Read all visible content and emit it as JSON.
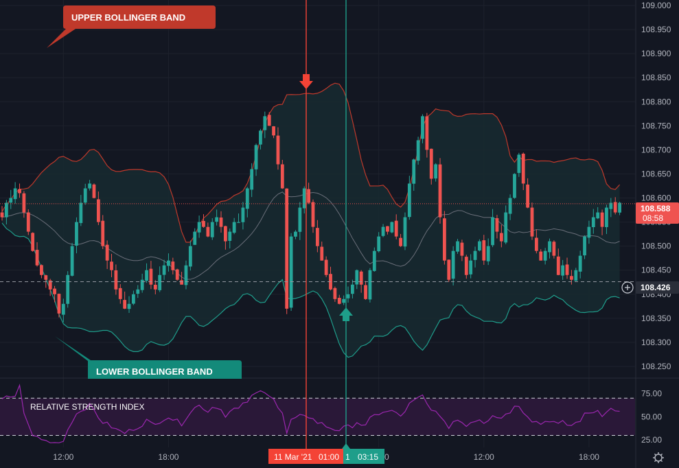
{
  "colors": {
    "background": "#131722",
    "grid": "#1e222d",
    "up": "#26a69a",
    "down": "#ef5350",
    "upper_band": "#c0392b",
    "lower_band": "#1f9e8c",
    "middle_band": "#6b6f7a",
    "band_fill": "#172a30",
    "rsi_line": "#9c27b0",
    "rsi_fill": "#2a1838",
    "sell_marker": "#f44336",
    "buy_marker": "#1e9e8a",
    "axis_text": "#b2b5be",
    "current_price_bg": "#ef5350",
    "hover_price_bg": "#2a2e39"
  },
  "annotations": {
    "upper_band_label": "UPPER BOLLINGER BAND",
    "lower_band_label": "LOWER BOLLINGER BAND",
    "rsi_label": "RELATIVE STRENGTH INDEX"
  },
  "price_axis": {
    "current_price": "108.588",
    "countdown": "08:58",
    "hover_price": "108.426"
  },
  "time_axis": {
    "sell_time_date": "11 Mar '21",
    "sell_time_clock": "01:00",
    "buy_time_fragment": "1",
    "buy_time_clock": "03:15"
  },
  "settings_icon": "gear-icon",
  "chart_data": {
    "type": "candlestick",
    "symbol_interval_minutes": 15,
    "price_range": [
      108.23,
      109.0
    ],
    "price_ticks": [
      "109.000",
      "108.950",
      "108.900",
      "108.850",
      "108.800",
      "108.750",
      "108.700",
      "108.650",
      "108.600",
      "108.550",
      "108.500",
      "108.450",
      "108.400",
      "108.350",
      "108.300",
      "108.250"
    ],
    "price_tick_values": [
      109.0,
      108.95,
      108.9,
      108.85,
      108.8,
      108.75,
      108.7,
      108.65,
      108.6,
      108.55,
      108.5,
      108.45,
      108.4,
      108.35,
      108.3,
      108.25
    ],
    "time_ticks": [
      {
        "label": "12:00",
        "bar": 14
      },
      {
        "label": "18:00",
        "bar": 38
      },
      {
        "label": "06:00",
        "bar": 86
      },
      {
        "label": "12:00",
        "bar": 110
      },
      {
        "label": "18:00",
        "bar": 134
      }
    ],
    "sell_signal_bar": 68,
    "buy_signal_bar": 77,
    "close": [
      108.37,
      108.52,
      108.53,
      108.58,
      108.62,
      108.59,
      108.54,
      108.5,
      108.47,
      108.44,
      108.41,
      108.39,
      108.38,
      108.39,
      108.4,
      108.42,
      108.45,
      108.42,
      108.39,
      108.45,
      108.49,
      108.52,
      108.54,
      108.53,
      108.55,
      108.52,
      108.5,
      108.56,
      108.63,
      108.68,
      108.72,
      108.77,
      108.7,
      108.64,
      108.67,
      108.56,
      108.47,
      108.43,
      108.49,
      108.51,
      108.48,
      108.44,
      108.47,
      108.49,
      108.51,
      108.47,
      108.5,
      108.56,
      108.53,
      108.51,
      108.57,
      108.6,
      108.65,
      108.69,
      108.63,
      108.58,
      108.52,
      108.49,
      108.47,
      108.49,
      108.51,
      108.48,
      108.44,
      108.46,
      108.44,
      108.43,
      108.45,
      108.48,
      108.52,
      108.54,
      108.56,
      108.57,
      108.54,
      108.58,
      108.59,
      108.57,
      108.59
    ],
    "rsi": {
      "levels": [
        70,
        30
      ],
      "ticks": [
        "75.00",
        "50.00",
        "25.00"
      ],
      "tick_values": [
        75,
        50,
        25
      ],
      "range": [
        20,
        85
      ]
    },
    "bollinger": {
      "period": 20,
      "std_dev": 2
    }
  }
}
